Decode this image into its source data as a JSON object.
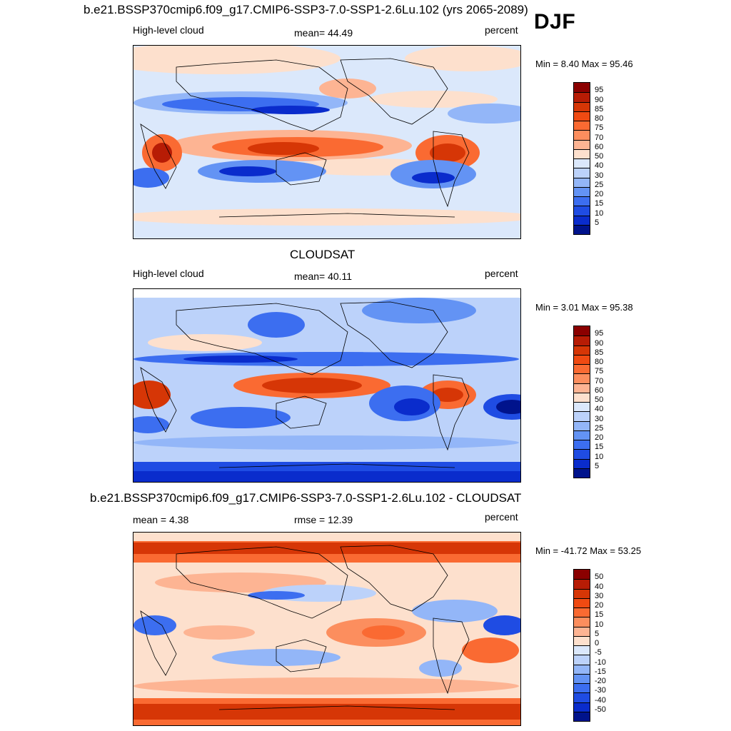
{
  "season": "DJF",
  "panels": [
    {
      "title": "b.e21.BSSP370cmip6.f09_g17.CMIP6-SSP3-7.0-SSP1-2.6Lu.102 (yrs 2065-2089)",
      "left_label": "High-level cloud",
      "center_label": "mean=  44.49",
      "right_label": "percent",
      "minmax": "Min =   8.40 Max =  95.46",
      "colorbar": {
        "levels": [
          "95",
          "90",
          "85",
          "80",
          "75",
          "70",
          "60",
          "50",
          "40",
          "30",
          "25",
          "20",
          "15",
          "10",
          "5"
        ],
        "colors": [
          "#8b0000",
          "#b71c05",
          "#d63606",
          "#f04a12",
          "#fa6a32",
          "#fc8e5e",
          "#fdb493",
          "#fde0cd",
          "#dbe8fb",
          "#bcd2fa",
          "#93b6f8",
          "#6393f4",
          "#3c6ef0",
          "#1f4ce3",
          "#0a2ccc",
          "#00138c"
        ]
      }
    },
    {
      "title": "CLOUDSAT",
      "left_label": "High-level cloud",
      "center_label": "mean=  40.11",
      "right_label": "percent",
      "minmax": "Min =   3.01 Max =  95.38",
      "colorbar": {
        "levels": [
          "95",
          "90",
          "85",
          "80",
          "75",
          "70",
          "60",
          "50",
          "40",
          "30",
          "25",
          "20",
          "15",
          "10",
          "5"
        ],
        "colors": [
          "#8b0000",
          "#b71c05",
          "#d63606",
          "#f04a12",
          "#fa6a32",
          "#fc8e5e",
          "#fdb493",
          "#fde0cd",
          "#dbe8fb",
          "#bcd2fa",
          "#93b6f8",
          "#6393f4",
          "#3c6ef0",
          "#1f4ce3",
          "#0a2ccc",
          "#00138c"
        ]
      }
    },
    {
      "title": "b.e21.BSSP370cmip6.f09_g17.CMIP6-SSP3-7.0-SSP1-2.6Lu.102 - CLOUDSAT",
      "left_label": "mean =   4.38",
      "center_label": "rmse =  12.39",
      "right_label": "percent",
      "minmax": "Min = -41.72 Max =  53.25",
      "colorbar": {
        "levels": [
          "50",
          "40",
          "30",
          "20",
          "15",
          "10",
          "5",
          "0",
          "-5",
          "-10",
          "-15",
          "-20",
          "-30",
          "-40",
          "-50"
        ],
        "colors": [
          "#8b0000",
          "#b71c05",
          "#d63606",
          "#f04a12",
          "#fa6a32",
          "#fc8e5e",
          "#fdb493",
          "#fde0cd",
          "#dbe8fb",
          "#bcd2fa",
          "#93b6f8",
          "#6393f4",
          "#3c6ef0",
          "#1f4ce3",
          "#0a2ccc",
          "#00138c"
        ]
      }
    }
  ]
}
